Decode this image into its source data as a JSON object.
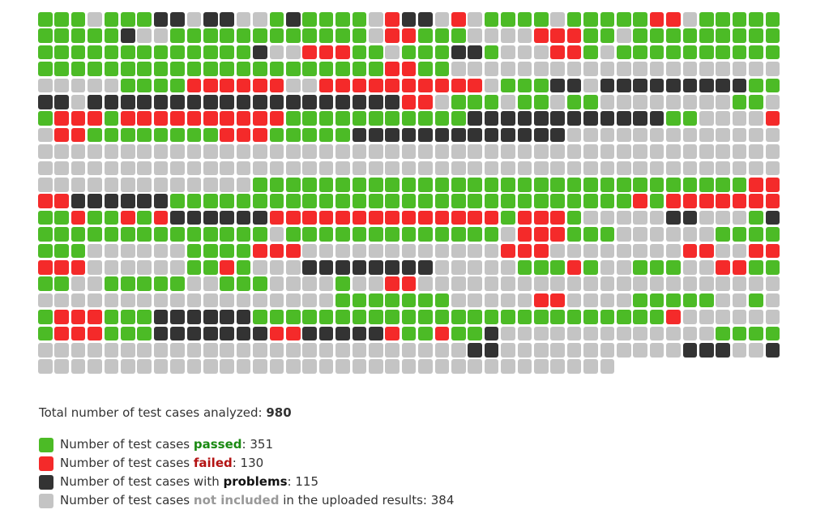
{
  "chart_data": {
    "type": "heatmap",
    "columns": 45,
    "rows": 22,
    "colors": {
      "P": "#4cbb26",
      "F": "#f42a2a",
      "X": "#333333",
      "N": "#c4c4c4"
    },
    "legend_map": {
      "P": "passed",
      "F": "failed",
      "X": "problems",
      "N": "not included"
    },
    "cells": [
      "PPPNPPPXXNXXNNPXPPPPNFXXNFNPPPPNPPPPPFFNPPPPP",
      "PPPPPXNNPPPPPPPPPPPPNFFPPPNNNNFFFPPNPPPPPPPPP",
      "PPPPPPPPPPPPPXNNFFFPPNPPPXXPNNNFFPNPPPPPPPPPP",
      "PPPPPPPPPPPPPPPPPPPPPFFPPNNNNNNNNNNNNNNNNNNNN",
      "NNNNNPPPPFFFFFFNNFFFFFFFFFFNPPPXXNXXXXXXXXXPPP",
      "XXNXXXXXXXXXXXXXXXXXXXFFNPPPNPPNPPNNNNNNNNPPNF",
      "PFFFPFFFFFFFFFFPPPPPPPPPPPXXXXXXXXXXXXPPNNNNFFF",
      "NFFPPPPPPPPFFFPPPPPXXXXXXXXXXXXXNNNNNNNNNNNNNN",
      "NNNNNNNNNNNNNNNNNNNNNNNNNNNNNNNNNNNNNNNNNNNNN",
      "NNNNNNNNNNNNNNNNNNNNNNNNNNNNNNNNNNNNNNNNNNNNN",
      "NNNNNNNNNNNNNPPPPPPPPPPPPPPPPPPPPPPPPPPPPPPFFFF",
      "FFXXXXXXPPPPPPPPPPPPPPPPPPPPPPPPPPPPFPFFFFFFFFPP",
      "PPFPPFPFXXXXXXFFFFFFFFFFFFFFPFFFPNNNNNXXNNNPXPPP",
      "PPPPPPPPPPPPPPNPPPPPPPPPPPPPNFFFPPPNNNNNNPPPPFFF",
      "PPPNNNNNNPPPPFFFNNNNNNNNNNNNFFFNNNNNNNNFFNNFFFF",
      "FFFNNNNNNPPFPNNNXXXXXXXXNNNNNPPPFPNNPPPNNFFPPPP",
      "PPNNPPPPPNNPPPNNNNPNNFFNNNNNNNNNNNNNNNNNNNNNNNN",
      "NNNNNNNNNNNNNNNNNNPPPPPPPNNNNNFFNNNNPPPPPNNPNNPPP",
      "PFFFPPPXXXXXXPPPPPPPPPPPPPPPPPPPPPPPPPFNNNNNNNNN",
      "PFFFPPPXXXXXXXFFXXXXXFPPFPPXNNNNNNNNNNNNNPPPPPP",
      "NNNNNNNNNNNNNNNNNNNNNNNNNNXXNNNNNNNNNNNXXXNNXNNN",
      "NNNNNNNNNNNNNNNNNNNNNNNNNNNNNNNNNNN"
    ]
  },
  "summary": {
    "prefix": "Total number of test cases analyzed: ",
    "total": "980"
  },
  "legend": [
    {
      "key": "P",
      "color": "#4cbb26",
      "before": "Number of test cases ",
      "keyword": "passed",
      "after": ": 351",
      "kwclass": "kw-passed"
    },
    {
      "key": "F",
      "color": "#f42a2a",
      "before": "Number of test cases ",
      "keyword": "failed",
      "after": ": 130",
      "kwclass": "kw-failed"
    },
    {
      "key": "X",
      "color": "#333333",
      "before": "Number of test cases with ",
      "keyword": "problems",
      "after": ": 115",
      "kwclass": "kw-problems"
    },
    {
      "key": "N",
      "color": "#c4c4c4",
      "before": "Number of test cases ",
      "keyword": "not included",
      "after": " in the uploaded results: 384",
      "kwclass": "kw-not"
    }
  ]
}
